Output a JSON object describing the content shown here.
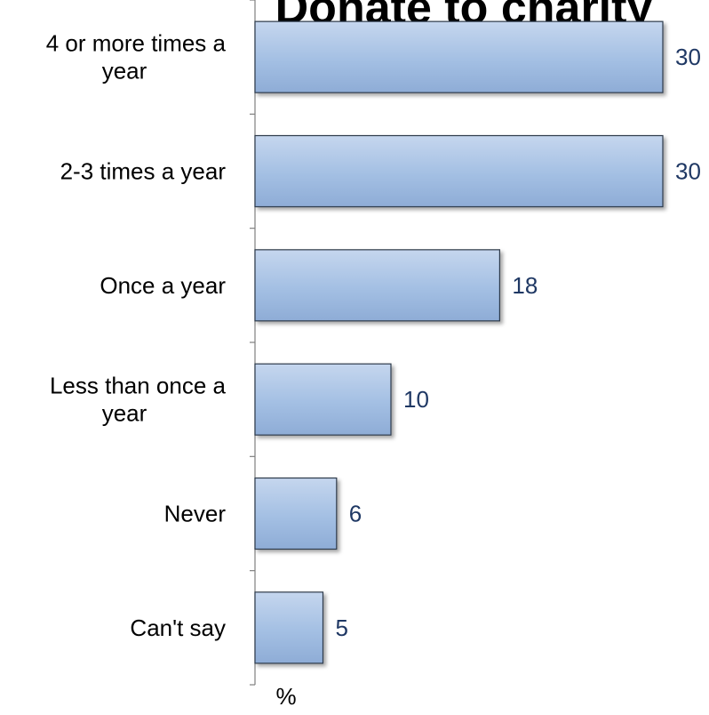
{
  "chart_data": {
    "type": "bar",
    "orientation": "horizontal",
    "title": "Donate to charity",
    "categories": [
      "4 or more times a year",
      "2-3 times a year",
      "Once a year",
      "Less than once a year",
      "Never",
      "Can't say"
    ],
    "category_lines": [
      [
        "4 or more times a",
        "year"
      ],
      [
        "2-3 times a year"
      ],
      [
        "Once a year"
      ],
      [
        "Less than once a",
        "year"
      ],
      [
        "Never"
      ],
      [
        "Can't say"
      ]
    ],
    "values": [
      30,
      30,
      18,
      10,
      6,
      5
    ],
    "xlabel": "%",
    "ylabel": "",
    "xlim": [
      0,
      30
    ],
    "grid": false,
    "legend": "none",
    "colors": {
      "bar_top": "#c5d6ee",
      "bar_mid": "#a3bfe3",
      "bar_bottom": "#8eacd6",
      "bar_stroke": "#2f3b4c",
      "value_label": "#1f3864",
      "axis": "#7f7f7f"
    }
  }
}
